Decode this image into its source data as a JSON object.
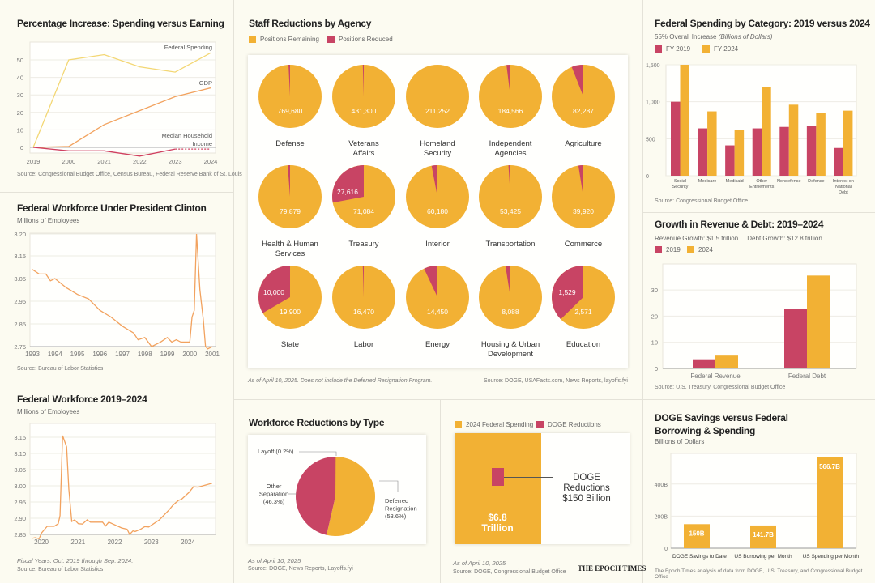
{
  "colors": {
    "orange": "#f2b134",
    "red": "#c84464",
    "line_orange": "#f2a25e",
    "line_yellow": "#f3d774",
    "bg": "#fcfbf1"
  },
  "pct": {
    "title": "Percentage Increase: Spending versus Earning",
    "source": "Source: Congressional Budget Office, Census Bureau, Federal Reserve Bank of St. Louis",
    "chart_data": {
      "type": "line",
      "categories": [
        "2019",
        "2000",
        "2021",
        "2022",
        "2023",
        "2024"
      ],
      "ylim": [
        -6,
        58
      ],
      "yticks": [
        0,
        10,
        20,
        30,
        40,
        50
      ],
      "grid": true,
      "series": [
        {
          "name": "Federal Spending",
          "values": [
            0,
            50,
            53,
            46,
            43,
            54
          ],
          "color": "#f3d774"
        },
        {
          "name": "GDP",
          "values": [
            0,
            0.5,
            13,
            21,
            29,
            34
          ],
          "color": "#f2a25e"
        },
        {
          "name": "Median Household Income",
          "values": [
            0,
            -2,
            -2,
            -5,
            -1,
            -1
          ],
          "color": "#d04060",
          "dotted_last_segment": true
        }
      ]
    }
  },
  "clinton": {
    "title": "Federal Workforce Under President Clinton",
    "subtitle": "Millions of Employees",
    "source": "Source: Bureau of Labor Statistics",
    "chart_data": {
      "type": "line",
      "xticks": [
        "1993",
        "1994",
        "1995",
        "1996",
        "1997",
        "1998",
        "1999",
        "2000",
        "2001"
      ],
      "xlim": [
        1993,
        2001
      ],
      "yticks": [
        "3.20",
        "3.15",
        "3.05",
        "2.95",
        "2.85",
        "2.75"
      ],
      "x": [
        1993.0,
        1993.3,
        1993.6,
        1993.8,
        1994.0,
        1994.5,
        1995.0,
        1995.5,
        1995.8,
        1996.0,
        1996.5,
        1997.0,
        1997.5,
        1997.7,
        1998.0,
        1998.3,
        1998.7,
        1999.0,
        1999.2,
        1999.4,
        1999.6,
        2000.0,
        2000.1,
        2000.2,
        2000.3,
        2000.45,
        2000.6,
        2000.7,
        2000.8,
        2001.0
      ],
      "y": [
        3.09,
        3.07,
        3.07,
        3.04,
        3.05,
        3.01,
        2.98,
        2.96,
        2.93,
        2.91,
        2.88,
        2.84,
        2.81,
        2.78,
        2.79,
        2.75,
        2.77,
        2.79,
        2.77,
        2.78,
        2.77,
        2.77,
        2.88,
        2.91,
        3.2,
        3.0,
        2.87,
        2.75,
        2.74,
        2.75
      ]
    }
  },
  "recent": {
    "title": "Federal Workforce 2019–2024",
    "subtitle": "Millions of Employees",
    "note": "Fiscal Years: Oct. 2019 through Sep. 2024.",
    "source": "Source: Bureau of Labor Statistics",
    "chart_data": {
      "type": "line",
      "xticks": [
        "2020",
        "2021",
        "2022",
        "2023",
        "2024"
      ],
      "yticks": [
        "3.15",
        "3.10",
        "3.05",
        "3.00",
        "2.95",
        "2.90",
        "2.85"
      ],
      "ylim": [
        2.85,
        3.15
      ],
      "x": [
        2019.76,
        2019.83,
        2019.94,
        2020.01,
        2020.16,
        2020.35,
        2020.46,
        2020.51,
        2020.58,
        2020.69,
        2020.75,
        2020.83,
        2020.91,
        2021.01,
        2021.12,
        2021.25,
        2021.34,
        2021.67,
        2021.75,
        2021.84,
        2022.19,
        2022.34,
        2022.41,
        2022.5,
        2022.56,
        2022.71,
        2022.82,
        2022.93,
        2023.22,
        2023.48,
        2023.59,
        2023.74,
        2023.82,
        2024.03,
        2024.15,
        2024.28,
        2024.66
      ],
      "y": [
        2.838,
        2.84,
        2.837,
        2.855,
        2.875,
        2.875,
        2.883,
        2.908,
        3.155,
        3.12,
        2.99,
        2.89,
        2.895,
        2.883,
        2.882,
        2.895,
        2.888,
        2.888,
        2.876,
        2.888,
        2.87,
        2.866,
        2.85,
        2.861,
        2.859,
        2.866,
        2.874,
        2.873,
        2.895,
        2.925,
        2.94,
        2.955,
        2.958,
        2.98,
        2.997,
        2.996,
        3.008
      ]
    }
  },
  "agency": {
    "title": "Staff Reductions by Agency",
    "legend": [
      "Positions Remaining",
      "Positions Reduced"
    ],
    "note": "As of April 10, 2025. Does not include the Deferred Resignation Program.",
    "source": "Source: DOGE, USAFacts.com, News Reports, layoffs.fyi",
    "chart_data": {
      "type": "pie",
      "unit": "fraction of positions reduced",
      "agencies": [
        {
          "name": "Defense",
          "remaining": "769,680",
          "reduced_fraction": 0.008
        },
        {
          "name": "Veterans Affairs",
          "remaining": "431,300",
          "reduced_fraction": 0.005
        },
        {
          "name": "Homeland Security",
          "remaining": "211,252",
          "reduced_fraction": 0.002
        },
        {
          "name": "Independent Agencies",
          "remaining": "184,566",
          "reduced_fraction": 0.02
        },
        {
          "name": "Agriculture",
          "remaining": "82,287",
          "reduced_fraction": 0.06
        },
        {
          "name": "Health & Human Services",
          "remaining": "79,879",
          "reduced_fraction": 0.012
        },
        {
          "name": "Treasury",
          "remaining": "71,084",
          "reduced": "27,616",
          "reduced_fraction": 0.28
        },
        {
          "name": "Interior",
          "remaining": "60,180",
          "reduced_fraction": 0.03
        },
        {
          "name": "Transportation",
          "remaining": "53,425",
          "reduced_fraction": 0.01
        },
        {
          "name": "Commerce",
          "remaining": "39,920",
          "reduced_fraction": 0.025
        },
        {
          "name": "State",
          "remaining": "19,900",
          "reduced": "10,000",
          "reduced_fraction": 0.334
        },
        {
          "name": "Labor",
          "remaining": "16,470",
          "reduced_fraction": 0.005
        },
        {
          "name": "Energy",
          "remaining": "14,450",
          "reduced_fraction": 0.07
        },
        {
          "name": "Housing & Urban Development",
          "remaining": "8,088",
          "reduced_fraction": 0.025
        },
        {
          "name": "Education",
          "remaining": "2,571",
          "reduced": "1,529",
          "reduced_fraction": 0.373
        }
      ]
    }
  },
  "types": {
    "title": "Workforce Reductions by Type",
    "note": "As of April 10, 2025",
    "source": "Source: DOGE, News Reports, Layoffs.fyi",
    "chart_data": {
      "type": "pie",
      "slices": [
        {
          "label": "Deferred Resignation (53.6%)",
          "value": 53.6,
          "color": "#f2b134"
        },
        {
          "label": "Other Separation (46.3%)",
          "value": 46.3,
          "color": "#c84464"
        },
        {
          "label": "Layoff (0.2%)",
          "value": 0.2,
          "color": "#c84464"
        }
      ]
    }
  },
  "square": {
    "legend": [
      "2024 Federal Spending",
      "DOGE Reductions"
    ],
    "big_label": "$6.8 Trillion",
    "small_label": "DOGE Reductions $150 Billion",
    "note": "As of April 10, 2025",
    "source": "Source: DOGE, Congressional Budget Office",
    "logo": "THE EPOCH TIMES",
    "chart_data": {
      "type": "area",
      "values": [
        {
          "name": "2024 Federal Spending",
          "value_billion": 6800
        },
        {
          "name": "DOGE Reductions",
          "value_billion": 150
        }
      ]
    }
  },
  "category": {
    "title": "Federal Spending by Category: 2019 versus 2024",
    "subtitle": "55% Overall Increase",
    "subtitle_unit": "(Billions of Dollars)",
    "source": "Source: Congressional Budget Office",
    "chart_data": {
      "type": "bar",
      "categories": [
        "Social Security",
        "Medicare",
        "Medicaid",
        "Other Entitlements",
        "Nondefense",
        "Defense",
        "Interest on National Debt"
      ],
      "ylim": [
        0,
        1500
      ],
      "yticks": [
        "0",
        "500",
        "1,000",
        "1,500"
      ],
      "series": [
        {
          "name": "FY 2019",
          "values": [
            1000,
            640,
            410,
            640,
            660,
            675,
            375
          ]
        },
        {
          "name": "FY 2024",
          "values": [
            1500,
            870,
            620,
            1200,
            960,
            850,
            880
          ]
        }
      ]
    }
  },
  "revdebt": {
    "title": "Growth in Revenue & Debt: 2019–2024",
    "subtitle": "Revenue Growth: $1.5 trillion     Debt Growth: $12.8 trillion",
    "source": "Source: U.S. Treasury, Congressional Budget Office",
    "chart_data": {
      "type": "bar",
      "categories": [
        "Federal Revenue",
        "Federal Debt"
      ],
      "ylim": [
        0,
        40
      ],
      "yticks": [
        "0",
        "10",
        "20",
        "30"
      ],
      "series": [
        {
          "name": "2019",
          "values": [
            3.5,
            22.7
          ]
        },
        {
          "name": "2024",
          "values": [
            4.9,
            35.5
          ]
        }
      ]
    }
  },
  "doge": {
    "title": "DOGE Savings versus Federal Borrowing & Spending",
    "subtitle": "Billions of Dollars",
    "source": "The Epoch Times analysis of data from DOGE, U.S. Treasury, and Congressional Budget Office",
    "chart_data": {
      "type": "bar",
      "categories": [
        "DOGE Savings to Date",
        "US Borrowing per Month",
        "US Spending per Month"
      ],
      "values": [
        150,
        141.7,
        566.7
      ],
      "labels": [
        "150B",
        "141.7B",
        "566.7B"
      ],
      "ylim": [
        0,
        600
      ],
      "yticks": [
        "0",
        "200B",
        "400B"
      ]
    }
  }
}
